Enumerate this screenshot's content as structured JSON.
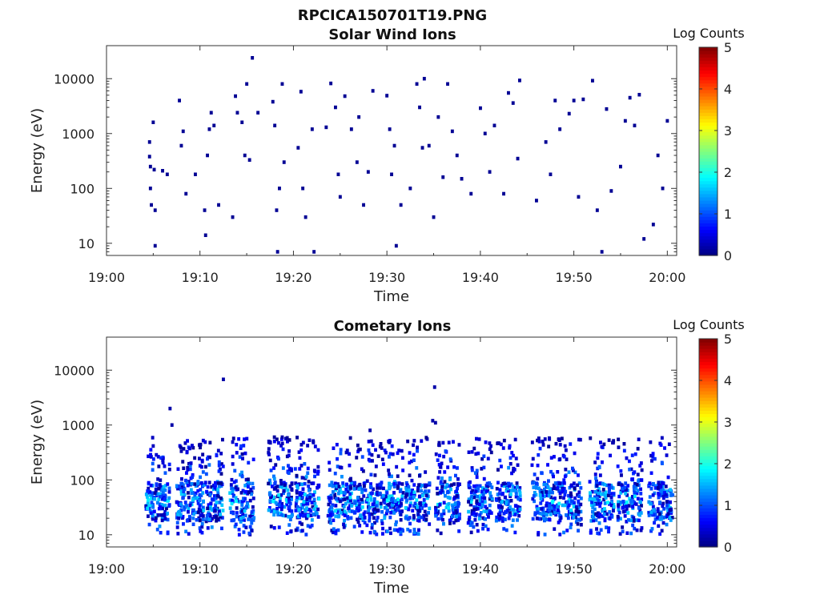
{
  "figure": {
    "filename": "RPCICA150701T19.PNG"
  },
  "colorbar": {
    "label": "Log Counts",
    "range": [
      0,
      5
    ],
    "ticks": [
      "0",
      "1",
      "2",
      "3",
      "4",
      "5"
    ],
    "colormap": "jet"
  },
  "chart_data": [
    {
      "type": "heatmap",
      "title": "Solar Wind Ions",
      "xlabel": "Time",
      "ylabel": "Energy (eV)",
      "xlim": [
        "19:00",
        "20:01"
      ],
      "ylim": [
        6,
        40000
      ],
      "yscale": "log",
      "xticks": [
        "19:00",
        "19:10",
        "19:20",
        "19:30",
        "19:40",
        "19:50",
        "20:00"
      ],
      "yticks": [
        "10",
        "100",
        "1000",
        "10000"
      ],
      "points": [
        [
          "19:04.6",
          700,
          0.1
        ],
        [
          "19:04.6",
          380,
          0.1
        ],
        [
          "19:04.7",
          250,
          0.1
        ],
        [
          "19:04.7",
          100,
          0.1
        ],
        [
          "19:04.8",
          50,
          0.1
        ],
        [
          "19:05.0",
          1600,
          0.1
        ],
        [
          "19:05.1",
          220,
          0.1
        ],
        [
          "19:05.2",
          40,
          0.1
        ],
        [
          "19:05.2",
          9,
          0.1
        ],
        [
          "19:06.0",
          210,
          0.1
        ],
        [
          "19:06.5",
          180,
          0.1
        ],
        [
          "19:07.8",
          4000,
          0.1
        ],
        [
          "19:08.0",
          600,
          0.1
        ],
        [
          "19:08.2",
          1100,
          0.1
        ],
        [
          "19:08.5",
          80,
          0.1
        ],
        [
          "19:09.5",
          180,
          0.1
        ],
        [
          "19:10.5",
          40,
          0.1
        ],
        [
          "19:10.6",
          14,
          0.1
        ],
        [
          "19:10.8",
          400,
          0.1
        ],
        [
          "19:11.0",
          1200,
          0.1
        ],
        [
          "19:11.2",
          2400,
          0.1
        ],
        [
          "19:11.5",
          1400,
          0.1
        ],
        [
          "19:12.0",
          50,
          0.1
        ],
        [
          "19:13.5",
          30,
          0.1
        ],
        [
          "19:13.8",
          4800,
          0.1
        ],
        [
          "19:14.0",
          2400,
          0.1
        ],
        [
          "19:14.5",
          1600,
          0.1
        ],
        [
          "19:14.8",
          400,
          0.1
        ],
        [
          "19:15.0",
          8000,
          0.1
        ],
        [
          "19:15.3",
          330,
          0.1
        ],
        [
          "19:15.6",
          24000,
          0.1
        ],
        [
          "19:16.2",
          2400,
          0.1
        ],
        [
          "19:17.8",
          3800,
          0.1
        ],
        [
          "19:18.0",
          1400,
          0.1
        ],
        [
          "19:18.2",
          40,
          0.1
        ],
        [
          "19:18.3",
          7,
          0.1
        ],
        [
          "19:18.5",
          100,
          0.1
        ],
        [
          "19:18.8",
          8000,
          0.1
        ],
        [
          "19:19.0",
          300,
          0.1
        ],
        [
          "19:20.5",
          550,
          0.1
        ],
        [
          "19:20.8",
          5800,
          0.1
        ],
        [
          "19:21.0",
          100,
          0.1
        ],
        [
          "19:21.3",
          30,
          0.1
        ],
        [
          "19:22.0",
          1200,
          0.1
        ],
        [
          "19:22.2",
          7,
          0.1
        ],
        [
          "19:23.5",
          1300,
          0.1
        ],
        [
          "19:24.0",
          8200,
          0.1
        ],
        [
          "19:24.5",
          3000,
          0.1
        ],
        [
          "19:24.8",
          180,
          0.1
        ],
        [
          "19:25.0",
          70,
          0.1
        ],
        [
          "19:25.5",
          4800,
          0.1
        ],
        [
          "19:26.2",
          1200,
          0.1
        ],
        [
          "19:26.8",
          300,
          0.1
        ],
        [
          "19:27.0",
          2000,
          0.1
        ],
        [
          "19:27.5",
          50,
          0.1
        ],
        [
          "19:28.0",
          200,
          0.1
        ],
        [
          "19:28.5",
          6000,
          0.1
        ],
        [
          "19:30.0",
          4900,
          0.1
        ],
        [
          "19:30.3",
          1200,
          0.1
        ],
        [
          "19:30.5",
          180,
          0.1
        ],
        [
          "19:30.8",
          600,
          0.1
        ],
        [
          "19:31.0",
          9,
          0.1
        ],
        [
          "19:31.5",
          50,
          0.1
        ],
        [
          "19:32.5",
          100,
          0.1
        ],
        [
          "19:33.2",
          8000,
          0.1
        ],
        [
          "19:33.5",
          3000,
          0.1
        ],
        [
          "19:33.8",
          550,
          0.1
        ],
        [
          "19:34.0",
          10000,
          0.1
        ],
        [
          "19:34.5",
          600,
          0.1
        ],
        [
          "19:35.0",
          30,
          0.1
        ],
        [
          "19:35.5",
          2000,
          0.1
        ],
        [
          "19:36.0",
          160,
          0.1
        ],
        [
          "19:36.5",
          8000,
          0.1
        ],
        [
          "19:37.0",
          1100,
          0.1
        ],
        [
          "19:37.5",
          400,
          0.1
        ],
        [
          "19:38.0",
          150,
          0.1
        ],
        [
          "19:39.0",
          80,
          0.1
        ],
        [
          "19:40.0",
          2900,
          0.1
        ],
        [
          "19:40.5",
          1000,
          0.1
        ],
        [
          "19:41.0",
          200,
          0.1
        ],
        [
          "19:41.5",
          1400,
          0.1
        ],
        [
          "19:42.5",
          80,
          0.1
        ],
        [
          "19:43.0",
          5500,
          0.1
        ],
        [
          "19:43.5",
          3600,
          0.1
        ],
        [
          "19:44.0",
          350,
          0.1
        ],
        [
          "19:44.2",
          9300,
          0.1
        ],
        [
          "19:46.0",
          60,
          0.1
        ],
        [
          "19:47.0",
          700,
          0.1
        ],
        [
          "19:47.5",
          180,
          0.1
        ],
        [
          "19:48.0",
          4000,
          0.1
        ],
        [
          "19:48.5",
          1200,
          0.1
        ],
        [
          "19:49.5",
          2300,
          0.1
        ],
        [
          "19:50.0",
          4000,
          0.1
        ],
        [
          "19:50.5",
          70,
          0.1
        ],
        [
          "19:51.0",
          4200,
          0.1
        ],
        [
          "19:52.0",
          9200,
          0.1
        ],
        [
          "19:52.5",
          40,
          0.1
        ],
        [
          "19:53.0",
          7,
          0.1
        ],
        [
          "19:53.5",
          2800,
          0.1
        ],
        [
          "19:54.0",
          90,
          0.1
        ],
        [
          "19:55.0",
          250,
          0.1
        ],
        [
          "19:55.5",
          1700,
          0.1
        ],
        [
          "19:56.0",
          4500,
          0.1
        ],
        [
          "19:56.5",
          1400,
          0.1
        ],
        [
          "19:57.0",
          5100,
          0.1
        ],
        [
          "19:57.5",
          12,
          0.1
        ],
        [
          "19:58.5",
          22,
          0.1
        ],
        [
          "19:59.0",
          400,
          0.1
        ],
        [
          "19:59.5",
          100,
          0.1
        ],
        [
          "20:00.0",
          1700,
          0.1
        ]
      ]
    },
    {
      "type": "heatmap",
      "title": "Cometary Ions",
      "xlabel": "Time",
      "ylabel": "Energy (eV)",
      "xlim": [
        "19:00",
        "20:01"
      ],
      "ylim": [
        6,
        40000
      ],
      "yscale": "log",
      "xticks": [
        "19:00",
        "19:10",
        "19:20",
        "19:30",
        "19:40",
        "19:50",
        "20:00"
      ],
      "yticks": [
        "10",
        "100",
        "1000",
        "10000"
      ],
      "burst_centers": [
        "19:05.5",
        "19:08.8",
        "19:11.2",
        "19:14.5",
        "19:18.6",
        "19:21.5",
        "19:25.0",
        "19:27.8",
        "19:30.5",
        "19:33.3",
        "19:36.5",
        "19:40.0",
        "19:43.0",
        "19:46.8",
        "19:49.5",
        "19:53.0",
        "19:56.0",
        "19:59.3"
      ],
      "burst_energy_range_eV": [
        10,
        600
      ],
      "burst_peak_energy_eV": 40,
      "peak_log_counts": 1.8,
      "isolated_points": [
        [
          "19:06.8",
          2000,
          0.2
        ],
        [
          "19:07.0",
          1000,
          0.2
        ],
        [
          "19:12.5",
          6800,
          0.2
        ],
        [
          "19:35.1",
          4900,
          0.2
        ],
        [
          "19:34.9",
          1200,
          0.2
        ],
        [
          "19:35.2",
          1100,
          0.2
        ],
        [
          "19:18.8",
          600,
          0.2
        ],
        [
          "19:28.2",
          800,
          0.2
        ]
      ]
    }
  ]
}
